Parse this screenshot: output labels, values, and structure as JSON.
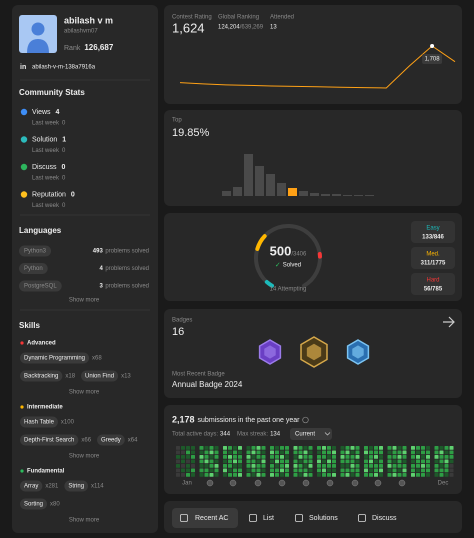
{
  "profile": {
    "name": "abilash v m",
    "username": "abilashvm07",
    "rank_label": "Rank",
    "rank": "126,687",
    "linkedin_icon": "in",
    "linkedin": "abilash-v-m-138a7916a"
  },
  "community_stats": {
    "title": "Community Stats",
    "items": [
      {
        "label": "Views",
        "value": "4",
        "last_week_label": "Last week",
        "last_week": "0"
      },
      {
        "label": "Solution",
        "value": "1",
        "last_week_label": "Last week",
        "last_week": "0"
      },
      {
        "label": "Discuss",
        "value": "0",
        "last_week_label": "Last week",
        "last_week": "0"
      },
      {
        "label": "Reputation",
        "value": "0",
        "last_week_label": "Last week",
        "last_week": "0"
      }
    ]
  },
  "languages": {
    "title": "Languages",
    "items": [
      {
        "name": "Python3",
        "count": "493",
        "suffix": "problems solved"
      },
      {
        "name": "Python",
        "count": "4",
        "suffix": "problems solved"
      },
      {
        "name": "PostgreSQL",
        "count": "3",
        "suffix": "problems solved"
      }
    ],
    "show_more": "Show more"
  },
  "skills": {
    "title": "Skills",
    "groups": [
      {
        "name": "Advanced",
        "color": "#f63737",
        "items": [
          {
            "name": "Dynamic Programming",
            "count": "x68"
          },
          {
            "name": "Backtracking",
            "count": "x18"
          },
          {
            "name": "Union Find",
            "count": "x13"
          }
        ],
        "show_more": "Show more"
      },
      {
        "name": "Intermediate",
        "color": "#ffb700",
        "items": [
          {
            "name": "Hash Table",
            "count": "x100"
          },
          {
            "name": "Depth-First Search",
            "count": "x66"
          },
          {
            "name": "Greedy",
            "count": "x64"
          }
        ],
        "show_more": "Show more"
      },
      {
        "name": "Fundamental",
        "color": "#2cbb5d",
        "items": [
          {
            "name": "Array",
            "count": "x281"
          },
          {
            "name": "String",
            "count": "x114"
          },
          {
            "name": "Sorting",
            "count": "x80"
          }
        ],
        "show_more": "Show more"
      }
    ]
  },
  "contest": {
    "rating_label": "Contest Rating",
    "rating": "1,624",
    "ranking_label": "Global Ranking",
    "ranking": "124,204",
    "ranking_total": "/639,269",
    "attended_label": "Attended",
    "attended": "13",
    "chart": {
      "type": "line",
      "color": "#ffa116",
      "values": [
        1512,
        1505,
        1500,
        1497,
        1494,
        1492,
        1490,
        1487,
        1485,
        1483,
        1600,
        1708,
        1624
      ],
      "tooltip": "1,708"
    }
  },
  "top": {
    "label": "Top",
    "value": "19.85%",
    "histogram": {
      "type": "bar",
      "values": [
        5,
        9,
        42,
        30,
        22,
        13,
        8,
        5,
        3,
        2,
        2,
        1,
        1,
        1
      ],
      "colors": [
        "#4a4a4a",
        "#4a4a4a",
        "#4a4a4a",
        "#4a4a4a",
        "#4a4a4a",
        "#4a4a4a",
        "#ffa116",
        "#4a4a4a",
        "#4a4a4a",
        "#4a4a4a",
        "#4a4a4a",
        "#4a4a4a",
        "#4a4a4a",
        "#4a4a4a"
      ]
    }
  },
  "solved": {
    "solved": "500",
    "total": "/3406",
    "check": "✓",
    "label": "Solved",
    "attempting": "14 Attempting",
    "difficulties": [
      {
        "label": "Easy",
        "value": "133/846",
        "color": "#1cbaba"
      },
      {
        "label": "Med.",
        "value": "311/1775",
        "color": "#ffb700"
      },
      {
        "label": "Hard",
        "value": "56/785",
        "color": "#f63737"
      }
    ]
  },
  "badges": {
    "label": "Badges",
    "count": "16",
    "recent_label": "Most Recent Badge",
    "recent": "Annual Badge 2024"
  },
  "submissions": {
    "count": "2,178",
    "text": "submissions in the past one year",
    "active_label": "Total active days:",
    "active": "344",
    "streak_label": "Max streak:",
    "streak": "134",
    "period": "Current",
    "month_start": "Jan",
    "month_end": "Dec",
    "level_colors": [
      "#3a3a3a",
      "#1d5a2a",
      "#2e9e45",
      "#5fd170"
    ],
    "levels": [
      [
        0,
        0,
        1,
        0,
        1,
        0,
        0,
        1,
        0,
        1,
        1,
        0,
        1,
        0,
        1,
        2,
        1,
        0,
        1,
        1,
        2,
        1,
        1,
        2,
        1,
        0,
        2,
        1
      ],
      [
        2,
        1,
        3,
        2,
        1,
        2,
        1,
        1,
        2,
        2,
        3,
        1,
        2,
        2,
        2,
        3,
        1,
        2,
        2,
        1,
        3,
        1,
        2,
        2,
        1,
        3,
        2,
        1
      ],
      [
        3,
        2,
        2,
        1,
        2,
        3,
        1,
        2,
        1,
        3,
        2,
        2,
        1,
        2,
        1,
        2,
        2,
        3,
        1,
        2,
        2,
        3,
        1,
        2,
        2,
        1,
        2,
        3
      ],
      [
        1,
        2,
        3,
        2,
        2,
        1,
        2,
        2,
        3,
        1,
        2,
        3,
        2,
        1,
        3,
        2,
        2,
        1,
        2,
        2,
        3,
        2,
        1,
        2,
        3,
        2,
        1,
        2
      ],
      [
        2,
        3,
        2,
        1,
        2,
        2,
        3,
        1,
        2,
        2,
        3,
        1,
        2,
        2,
        2,
        1,
        3,
        2,
        2,
        3,
        1,
        2,
        2,
        1,
        2,
        3,
        2,
        2
      ],
      [
        3,
        2,
        1,
        2,
        3,
        2,
        2,
        2,
        2,
        3,
        1,
        2,
        2,
        1,
        1,
        3,
        2,
        2,
        1,
        2,
        3,
        2,
        1,
        2,
        2,
        3,
        1,
        2
      ],
      [
        2,
        1,
        2,
        3,
        2,
        2,
        1,
        3,
        2,
        2,
        1,
        2,
        3,
        2,
        2,
        2,
        1,
        3,
        2,
        1,
        2,
        1,
        3,
        2,
        2,
        2,
        1,
        3
      ],
      [
        1,
        2,
        3,
        2,
        1,
        2,
        2,
        2,
        3,
        2,
        2,
        1,
        2,
        3,
        3,
        1,
        2,
        2,
        3,
        2,
        1,
        2,
        2,
        3,
        1,
        2,
        2,
        2
      ],
      [
        2,
        3,
        1,
        2,
        2,
        3,
        2,
        1,
        2,
        2,
        3,
        2,
        1,
        2,
        2,
        2,
        3,
        1,
        2,
        2,
        3,
        3,
        2,
        1,
        2,
        2,
        3,
        1
      ],
      [
        2,
        1,
        2,
        2,
        3,
        1,
        2,
        3,
        2,
        2,
        1,
        2,
        2,
        3,
        1,
        2,
        3,
        2,
        2,
        1,
        2,
        2,
        3,
        2,
        1,
        2,
        3,
        2
      ],
      [
        3,
        2,
        2,
        1,
        2,
        2,
        3,
        2,
        1,
        3,
        2,
        2,
        1,
        2,
        2,
        2,
        1,
        2,
        3,
        2,
        2,
        1,
        2,
        3,
        2,
        2,
        2,
        1
      ],
      [
        2,
        2,
        3,
        1,
        2,
        2,
        1,
        1,
        3,
        2,
        2,
        1,
        2,
        2,
        2,
        1,
        2,
        3,
        2,
        2,
        1,
        3,
        2,
        2,
        1,
        0,
        0,
        0
      ]
    ]
  },
  "tabs": [
    "Recent AC",
    "List",
    "Solutions",
    "Discuss"
  ]
}
